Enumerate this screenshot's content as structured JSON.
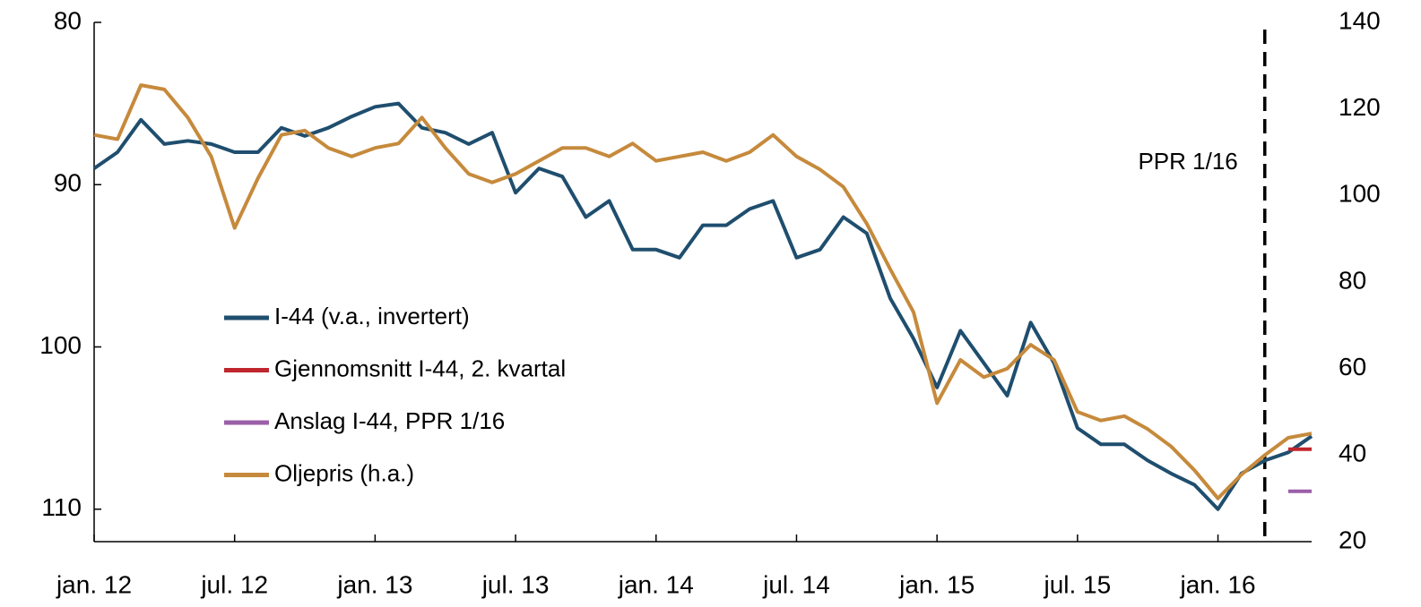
{
  "chart_data": {
    "type": "line",
    "xlim": [
      "2012-01",
      "2016-05"
    ],
    "xticks": [
      {
        "value": "2012-01",
        "label": "jan. 12"
      },
      {
        "value": "2012-07",
        "label": "jul. 12"
      },
      {
        "value": "2013-01",
        "label": "jan. 13"
      },
      {
        "value": "2013-07",
        "label": "jul. 13"
      },
      {
        "value": "2014-01",
        "label": "jan. 14"
      },
      {
        "value": "2014-07",
        "label": "jul. 14"
      },
      {
        "value": "2015-01",
        "label": "jan. 15"
      },
      {
        "value": "2015-07",
        "label": "jul. 15"
      },
      {
        "value": "2016-01",
        "label": "jan. 16"
      }
    ],
    "ylim": [
      80,
      112
    ],
    "y_inverted": true,
    "yticks": [
      80,
      90,
      100,
      110
    ],
    "y2lim": [
      20,
      140
    ],
    "y2ticks": [
      20,
      40,
      60,
      80,
      100,
      120,
      140
    ],
    "vline": {
      "x": "2016-03",
      "label": "PPR 1/16"
    },
    "x": [
      "2012-01",
      "2012-02",
      "2012-03",
      "2012-04",
      "2012-05",
      "2012-06",
      "2012-07",
      "2012-08",
      "2012-09",
      "2012-10",
      "2012-11",
      "2012-12",
      "2013-01",
      "2013-02",
      "2013-03",
      "2013-04",
      "2013-05",
      "2013-06",
      "2013-07",
      "2013-08",
      "2013-09",
      "2013-10",
      "2013-11",
      "2013-12",
      "2014-01",
      "2014-02",
      "2014-03",
      "2014-04",
      "2014-05",
      "2014-06",
      "2014-07",
      "2014-08",
      "2014-09",
      "2014-10",
      "2014-11",
      "2014-12",
      "2015-01",
      "2015-02",
      "2015-03",
      "2015-04",
      "2015-05",
      "2015-06",
      "2015-07",
      "2015-08",
      "2015-09",
      "2015-10",
      "2015-11",
      "2015-12",
      "2016-01",
      "2016-02",
      "2016-03",
      "2016-04",
      "2016-05"
    ],
    "series": [
      {
        "name": "I-44 (v.a., invertert)",
        "color": "#1f4e6e",
        "values": [
          89,
          88,
          86,
          87.5,
          87.3,
          87.5,
          88,
          88,
          86.5,
          87,
          86.5,
          85.8,
          85.2,
          85,
          86.5,
          86.8,
          87.5,
          86.8,
          90.5,
          89,
          89.5,
          92,
          91,
          94,
          94,
          94.5,
          92.5,
          92.5,
          91.5,
          91,
          94.5,
          94,
          92,
          93,
          97,
          99.5,
          102.5,
          99,
          101,
          103,
          98.5,
          101,
          105,
          106,
          106,
          107,
          107.8,
          108.5,
          110,
          107.8,
          107,
          106.5,
          105.5
        ]
      },
      {
        "name": "Gjennomsnitt I-44, 2. kvartal",
        "color": "#c0262d",
        "x": [
          "2016-04",
          "2016-05"
        ],
        "values": [
          106.3,
          106.3
        ]
      },
      {
        "name": "Anslag I-44, PPR 1/16",
        "color": "#9b5fa8",
        "x": [
          "2016-04",
          "2016-05"
        ],
        "values": [
          108.9,
          108.9
        ]
      },
      {
        "name": "Oljepris (h.a.)",
        "color": "#c68a3c",
        "axis": "y2",
        "values": [
          114,
          113,
          125.5,
          124.5,
          118,
          109,
          92.5,
          104,
          114,
          115,
          111,
          109,
          111,
          112,
          118,
          111,
          105,
          103,
          105,
          108,
          111,
          111,
          109,
          112,
          108,
          109,
          110,
          108,
          110,
          114,
          109,
          106,
          102,
          93.5,
          83,
          73,
          52,
          62,
          58,
          60,
          65.5,
          62,
          50,
          48,
          49,
          46,
          42,
          36.5,
          30,
          35.5,
          40,
          44,
          45
        ]
      }
    ]
  }
}
